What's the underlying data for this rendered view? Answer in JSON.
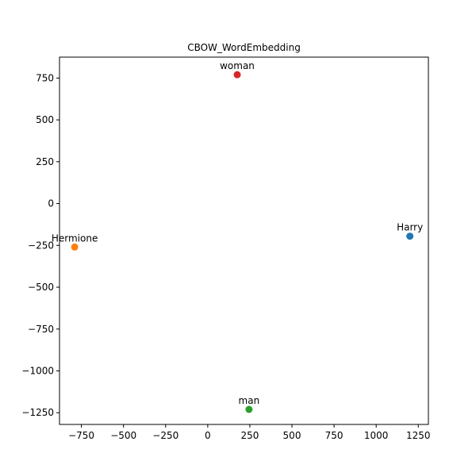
{
  "chart_data": {
    "type": "scatter",
    "title": "CBOW_WordEmbedding",
    "xlabel": "",
    "ylabel": "",
    "xlim": [
      -880,
      1310
    ],
    "ylim": [
      -1320,
      875
    ],
    "xticks": [
      -750,
      -500,
      -250,
      0,
      250,
      500,
      750,
      1000,
      1250
    ],
    "xtick_labels": [
      "−750",
      "−500",
      "−250",
      "0",
      "250",
      "500",
      "750",
      "1000",
      "1250"
    ],
    "yticks": [
      -1250,
      -1000,
      -750,
      -500,
      -250,
      0,
      250,
      500,
      750
    ],
    "ytick_labels": [
      "−1250",
      "−1000",
      "−750",
      "−500",
      "−250",
      "0",
      "250",
      "500",
      "750"
    ],
    "grid": false,
    "points": [
      {
        "label": "Harry",
        "x": 1200,
        "y": -195,
        "color": "#1f77b4"
      },
      {
        "label": "Hermione",
        "x": -790,
        "y": -260,
        "color": "#ff7f0e"
      },
      {
        "label": "man",
        "x": 245,
        "y": -1230,
        "color": "#2ca02c"
      },
      {
        "label": "woman",
        "x": 175,
        "y": 770,
        "color": "#d62728"
      }
    ]
  }
}
